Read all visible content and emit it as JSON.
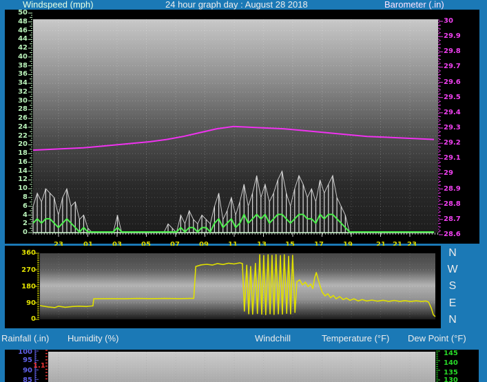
{
  "header": {
    "left_label": "Windspeed (mph)",
    "title": "24 hour graph day : August 28 2018",
    "right_label": "Barometer (.in)"
  },
  "section_labels": {
    "rainfall": "Rainfall (.in)",
    "humidity": "Humidity (%)",
    "windchill": "Windchill",
    "temperature": "Temperature (°F)",
    "dew_point": "Dew Point (°F)"
  },
  "compass": [
    "N",
    "W",
    "S",
    "E",
    "N"
  ],
  "colors": {
    "background_blue": "#1b79b6",
    "panel_black": "#000000",
    "windspeed_green": "#4bf04b",
    "gust_white": "#dcdcdc",
    "barometer_magenta": "#f032f0",
    "direction_yellow": "#e0e000",
    "hour_label_yellow": "#d8d800",
    "humidity_blue": "#6060e8",
    "rainfall_red": "#e83030",
    "temperature_green": "#28d828",
    "wind_axis_green": "#b8f0b8",
    "baro_axis_magenta": "#f040f0"
  },
  "chart_data": [
    {
      "type": "line",
      "title": "24 hour graph day : August 28 2018",
      "x_axis": {
        "unit": "hour of day",
        "tick_labels": [
          "23",
          "01",
          "03",
          "05",
          "07",
          "09",
          "11",
          "13",
          "15",
          "17",
          "19",
          "21",
          "21",
          "23"
        ]
      },
      "left_axis": {
        "label": "Windspeed (mph)",
        "ylim": [
          0,
          50
        ],
        "tick_labels": [
          "50",
          "48",
          "46",
          "44",
          "42",
          "40",
          "38",
          "36",
          "34",
          "32",
          "30",
          "28",
          "26",
          "24",
          "22",
          "20",
          "18",
          "16",
          "14",
          "12",
          "10",
          "8",
          "6",
          "4",
          "2",
          "0"
        ]
      },
      "right_axis": {
        "label": "Barometer (.in)",
        "ylim": [
          28.6,
          30
        ],
        "tick_labels": [
          "30",
          "29.9",
          "29.8",
          "29.7",
          "29.6",
          "29.5",
          "29.4",
          "29.3",
          "29.2",
          "29.1",
          "29",
          "28.9",
          "28.8",
          "28.7",
          "28.6"
        ]
      },
      "series": [
        {
          "name": "wind-gust",
          "unit": "mph",
          "color": "#dcdcdc",
          "values": [
            6,
            9,
            7,
            10,
            9,
            8,
            4,
            8,
            10,
            6,
            7,
            3,
            4,
            1,
            0,
            0,
            0,
            0,
            0,
            0,
            4,
            0,
            0,
            0,
            0,
            0,
            0,
            0,
            0,
            0,
            0,
            0,
            2,
            1,
            0,
            4,
            2,
            5,
            3,
            2,
            4,
            3,
            2,
            6,
            9,
            3,
            5,
            8,
            4,
            7,
            11,
            6,
            9,
            13,
            8,
            11,
            7,
            9,
            12,
            14,
            9,
            6,
            10,
            13,
            11,
            8,
            10,
            7,
            12,
            9,
            11,
            13,
            8,
            6,
            4,
            0,
            0,
            0,
            0,
            0,
            0,
            0,
            0,
            0,
            0,
            0,
            0,
            0,
            0,
            0,
            0,
            0,
            0,
            0,
            0,
            0
          ]
        },
        {
          "name": "wind-average",
          "unit": "mph",
          "color": "#4bf04b",
          "values": [
            2,
            3,
            2,
            3,
            3,
            2,
            1,
            2,
            3,
            2,
            1,
            0,
            1,
            0,
            0,
            0,
            0,
            0,
            0,
            0,
            1,
            0,
            0,
            0,
            0,
            0,
            0,
            0,
            0,
            0,
            0,
            0,
            0,
            0,
            0,
            1,
            0,
            1,
            1,
            0,
            1,
            1,
            0,
            2,
            3,
            1,
            2,
            3,
            1,
            2,
            4,
            2,
            3,
            4,
            3,
            4,
            2,
            3,
            4,
            4,
            3,
            2,
            3,
            4,
            4,
            3,
            3,
            2,
            4,
            3,
            4,
            4,
            3,
            2,
            1,
            0,
            0,
            0,
            0,
            0,
            0,
            0,
            0,
            0,
            0,
            0,
            0,
            0,
            0,
            0,
            0,
            0,
            0,
            0,
            0,
            0
          ]
        },
        {
          "name": "barometer",
          "unit": "inHg",
          "color": "#f032f0",
          "values": [
            29.155,
            29.16,
            29.165,
            29.17,
            29.18,
            29.19,
            29.2,
            29.21,
            29.225,
            29.245,
            29.27,
            29.295,
            29.31,
            29.305,
            29.3,
            29.295,
            29.285,
            29.275,
            29.265,
            29.255,
            29.245,
            29.24,
            29.235,
            29.23,
            29.225
          ]
        }
      ]
    },
    {
      "type": "line",
      "name": "wind-direction",
      "left_axis": {
        "label": "Wind direction (degrees)",
        "ylim": [
          0,
          360
        ],
        "tick_labels": [
          "360",
          "270",
          "180",
          "90",
          "0"
        ]
      },
      "compass_labels": [
        "N",
        "W",
        "S",
        "E",
        "N"
      ],
      "series": [
        {
          "name": "direction",
          "unit": "degrees",
          "color": "#e0e000",
          "points": [
            [
              0,
              75
            ],
            [
              0.021,
              68
            ],
            [
              0.038,
              64
            ],
            [
              0.047,
              72
            ],
            [
              0.064,
              66
            ],
            [
              0.082,
              70
            ],
            [
              0.099,
              72
            ],
            [
              0.117,
              70
            ],
            [
              0.131,
              73
            ],
            [
              0.134,
              73
            ],
            [
              0.136,
              112
            ],
            [
              0.178,
              113
            ],
            [
              0.213,
              112
            ],
            [
              0.247,
              114
            ],
            [
              0.282,
              113
            ],
            [
              0.317,
              114
            ],
            [
              0.352,
              113
            ],
            [
              0.378,
              114
            ],
            [
              0.389,
              114
            ],
            [
              0.394,
              288
            ],
            [
              0.408,
              297
            ],
            [
              0.422,
              300
            ],
            [
              0.436,
              296
            ],
            [
              0.449,
              304
            ],
            [
              0.463,
              299
            ],
            [
              0.477,
              306
            ],
            [
              0.491,
              302
            ],
            [
              0.505,
              308
            ],
            [
              0.512,
              304
            ],
            [
              0.517,
              45
            ],
            [
              0.523,
              295
            ],
            [
              0.528,
              30
            ],
            [
              0.533,
              288
            ],
            [
              0.538,
              28
            ],
            [
              0.545,
              305
            ],
            [
              0.55,
              32
            ],
            [
              0.556,
              352
            ],
            [
              0.561,
              28
            ],
            [
              0.566,
              348
            ],
            [
              0.571,
              26
            ],
            [
              0.577,
              352
            ],
            [
              0.582,
              30
            ],
            [
              0.587,
              349
            ],
            [
              0.592,
              27
            ],
            [
              0.597,
              353
            ],
            [
              0.603,
              30
            ],
            [
              0.608,
              348
            ],
            [
              0.613,
              29
            ],
            [
              0.618,
              352
            ],
            [
              0.624,
              33
            ],
            [
              0.629,
              344
            ],
            [
              0.634,
              30
            ],
            [
              0.639,
              349
            ],
            [
              0.645,
              38
            ],
            [
              0.65,
              205
            ],
            [
              0.657,
              215
            ],
            [
              0.664,
              188
            ],
            [
              0.671,
              202
            ],
            [
              0.678,
              178
            ],
            [
              0.685,
              192
            ],
            [
              0.69,
              168
            ],
            [
              0.695,
              228
            ],
            [
              0.699,
              255
            ],
            [
              0.704,
              215
            ],
            [
              0.709,
              178
            ],
            [
              0.714,
              148
            ],
            [
              0.721,
              128
            ],
            [
              0.728,
              140
            ],
            [
              0.735,
              118
            ],
            [
              0.742,
              130
            ],
            [
              0.749,
              112
            ],
            [
              0.758,
              124
            ],
            [
              0.767,
              108
            ],
            [
              0.775,
              116
            ],
            [
              0.784,
              104
            ],
            [
              0.794,
              112
            ],
            [
              0.805,
              100
            ],
            [
              0.815,
              108
            ],
            [
              0.826,
              100
            ],
            [
              0.84,
              105
            ],
            [
              0.854,
              99
            ],
            [
              0.868,
              104
            ],
            [
              0.882,
              98
            ],
            [
              0.896,
              103
            ],
            [
              0.91,
              98
            ],
            [
              0.923,
              102
            ],
            [
              0.937,
              97
            ],
            [
              0.951,
              101
            ],
            [
              0.965,
              98
            ],
            [
              0.976,
              100
            ],
            [
              0.983,
              94
            ],
            [
              0.99,
              60
            ],
            [
              0.995,
              25
            ],
            [
              1,
              15
            ]
          ]
        }
      ]
    },
    {
      "type": "partial",
      "note": "bottom graph cropped by window edge",
      "humidity_axis": {
        "label": "Humidity (%)",
        "tick_labels": [
          "100",
          "95",
          "90",
          "85"
        ]
      },
      "rainfall_axis": {
        "label": "Rainfall (.in)",
        "tick_labels": [
          "1.1"
        ]
      },
      "temperature_axis": {
        "label": "Temperature (°F)",
        "tick_labels": [
          "145",
          "140",
          "135",
          "130"
        ]
      }
    }
  ]
}
